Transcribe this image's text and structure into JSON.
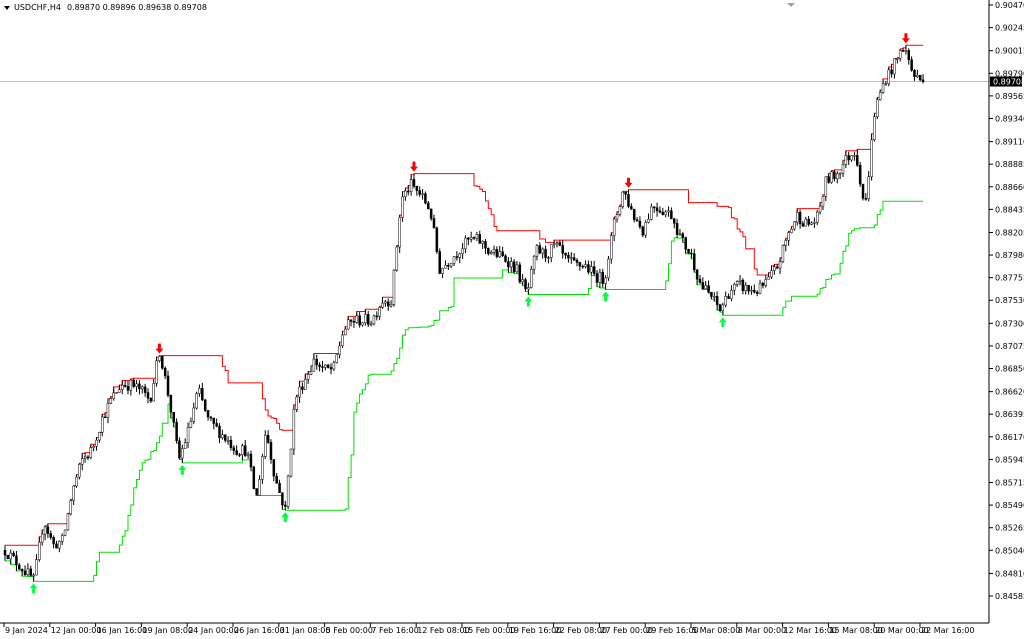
{
  "header": {
    "symbol": "USDCHF,H4",
    "ohlc": "0.89870 0.89896 0.89638 0.89708"
  },
  "current_price_label": "0.89708",
  "colors": {
    "upper_channel": "#ff0000",
    "lower_channel": "#00e000",
    "up_arrow": "#00ff40",
    "down_arrow": "#ff0000",
    "candle": "#000000",
    "price_line": "#c0c0c0",
    "background": "#ffffff"
  },
  "chart_data": {
    "type": "candlestick",
    "title": "USDCHF,H4",
    "indicators": [
      "upper channel (red)",
      "lower channel (green)",
      "swing high arrows (red, down)",
      "swing low arrows (green, up)"
    ],
    "ylim": [
      0.84585,
      0.9047
    ],
    "y_ticks": [
      "0.90470",
      "0.90245",
      "0.90015",
      "0.89790",
      "0.89565",
      "0.89340",
      "0.89110",
      "0.88885",
      "0.88660",
      "0.88435",
      "0.88205",
      "0.87980",
      "0.87755",
      "0.87530",
      "0.87300",
      "0.87075",
      "0.86850",
      "0.86620",
      "0.86395",
      "0.86170",
      "0.85945",
      "0.85715",
      "0.85490",
      "0.85265",
      "0.85040",
      "0.84810",
      "0.84585"
    ],
    "x_ticks": [
      "9 Jan 2024",
      "12 Jan 00:00",
      "16 Jan 16:00",
      "19 Jan 08:00",
      "24 Jan 00:00",
      "26 Jan 16:00",
      "31 Jan 08:00",
      "5 Feb 00:00",
      "7 Feb 16:00",
      "12 Feb 08:00",
      "15 Feb 00:00",
      "19 Feb 16:00",
      "22 Feb 08:00",
      "27 Feb 00:00",
      "29 Feb 16:00",
      "5 Mar 08:00",
      "8 Mar 00:00",
      "12 Mar 16:00",
      "15 Mar 08:00",
      "20 Mar 00:00",
      "22 Mar 16:00"
    ],
    "grid": false,
    "approx_closes": [
      0.8504,
      0.8494,
      0.8484,
      0.8474,
      0.8534,
      0.8509,
      0.8514,
      0.8564,
      0.8594,
      0.8604,
      0.8634,
      0.8654,
      0.8669,
      0.8669,
      0.8664,
      0.8654,
      0.8703,
      0.8654,
      0.8594,
      0.8624,
      0.8664,
      0.8634,
      0.8624,
      0.8614,
      0.8604,
      0.8604,
      0.8554,
      0.8624,
      0.8574,
      0.8544,
      0.8654,
      0.8674,
      0.8693,
      0.8684,
      0.8684,
      0.8723,
      0.8733,
      0.8733,
      0.8733,
      0.8753,
      0.8753,
      0.8853,
      0.8868,
      0.8858,
      0.8843,
      0.8783,
      0.8793,
      0.8803,
      0.8813,
      0.8813,
      0.8803,
      0.8798,
      0.8793,
      0.8783,
      0.8758,
      0.8803,
      0.8798,
      0.8808,
      0.8793,
      0.8788,
      0.8788,
      0.8778,
      0.8773,
      0.8828,
      0.8863,
      0.8838,
      0.8823,
      0.8848,
      0.8843,
      0.8838,
      0.8813,
      0.8798,
      0.8768,
      0.8758,
      0.8743,
      0.8763,
      0.8768,
      0.8763,
      0.8763,
      0.8773,
      0.8788,
      0.8818,
      0.8838,
      0.8828,
      0.8833,
      0.8873,
      0.8878,
      0.8893,
      0.8903,
      0.8843,
      0.8942,
      0.8972,
      0.8987,
      0.9007,
      0.8977,
      0.89708
    ]
  }
}
